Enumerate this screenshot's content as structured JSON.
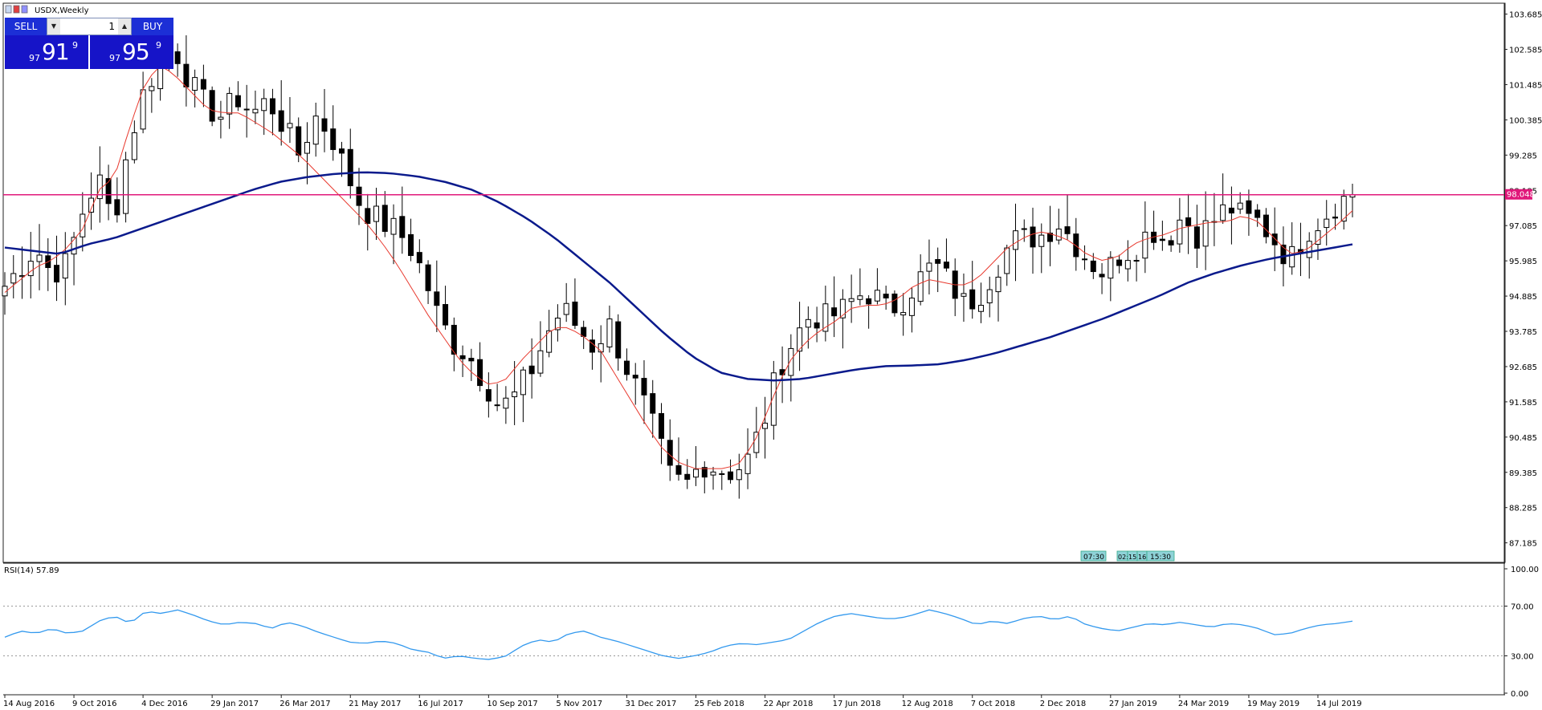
{
  "window": {
    "title": "USDX,Weekly"
  },
  "trade": {
    "sell_label": "SELL",
    "buy_label": "BUY",
    "lot_value": "1",
    "sell_price": {
      "small": "97",
      "big": "91",
      "sup": "9"
    },
    "buy_price": {
      "small": "97",
      "big": "95",
      "sup": "9"
    }
  },
  "colors": {
    "candle_bull": "#ffffff",
    "candle_bear": "#000000",
    "ma_fast": "#e8392e",
    "ma_slow": "#0a1a8c",
    "level_line": "#e0187a",
    "rsi_line": "#3399ee",
    "price_panel": "#1614c8"
  },
  "chart_data": [
    {
      "type": "candlestick",
      "symbol": "USDX",
      "timeframe": "Weekly",
      "ylim": [
        86.6,
        104.0
      ],
      "y_ticks": [
        "103.685",
        "102.585",
        "101.485",
        "100.385",
        "99.285",
        "98.185",
        "97.085",
        "95.985",
        "94.885",
        "93.785",
        "92.685",
        "91.585",
        "90.485",
        "89.385",
        "88.285",
        "87.185"
      ],
      "x_ticks": [
        "14 Aug 2016",
        "9 Oct 2016",
        "4 Dec 2016",
        "29 Jan 2017",
        "26 Mar 2017",
        "21 May 2017",
        "16 Jul 2017",
        "10 Sep 2017",
        "5 Nov 2017",
        "31 Dec 2017",
        "25 Feb 2018",
        "22 Apr 2018",
        "17 Jun 2018",
        "12 Aug 2018",
        "7 Oct 2018",
        "2 Dec 2018",
        "27 Jan 2019",
        "24 Mar 2019",
        "19 May 2019",
        "14 Jul 2019"
      ],
      "horizontal_level": 98.048,
      "current_price": "98.048",
      "close_path": [
        95.2,
        95.8,
        96.4,
        95.6,
        95.9,
        97.5,
        98.6,
        97.2,
        99.6,
        101.3,
        102.2,
        102.6,
        101.5,
        100.8,
        100.5,
        101.1,
        100.6,
        101.0,
        100.2,
        99.3,
        100.5,
        100.0,
        98.8,
        97.7,
        97.3,
        97.0,
        96.6,
        95.6,
        94.2,
        93.4,
        93.0,
        92.2,
        91.4,
        91.8,
        92.6,
        93.7,
        94.5,
        93.9,
        93.3,
        94.0,
        92.8,
        91.8,
        90.6,
        89.2,
        89.0,
        89.7,
        89.5,
        89.4,
        89.8,
        91.0,
        92.7,
        93.6,
        94.3,
        94.2,
        94.4,
        94.9,
        95.0,
        94.4,
        94.8,
        95.4,
        95.9,
        95.3,
        94.6,
        95.0,
        95.8,
        96.6,
        96.7,
        96.8,
        97.2,
        96.6,
        96.0,
        95.6,
        96.2,
        96.4,
        97.0,
        96.6,
        97.4,
        96.8,
        97.2,
        97.7,
        97.3,
        97.2,
        96.6,
        96.0,
        96.9,
        97.3,
        97.8,
        98.05
      ],
      "ma_fast_path": [
        95.0,
        95.4,
        95.8,
        96.0,
        96.4,
        97.0,
        98.2,
        98.6,
        100.2,
        101.6,
        102.1,
        101.7,
        101.2,
        100.7,
        100.6,
        100.6,
        100.3,
        100.0,
        99.6,
        99.2,
        98.7,
        98.2,
        97.7,
        97.2,
        96.6,
        95.9,
        95.1,
        94.3,
        93.6,
        92.9,
        92.4,
        92.1,
        92.3,
        92.9,
        93.4,
        93.9,
        93.9,
        93.6,
        93.2,
        92.4,
        91.6,
        90.8,
        90.1,
        89.7,
        89.5,
        89.5,
        89.5,
        89.7,
        90.5,
        91.7,
        92.8,
        93.4,
        93.8,
        94.1,
        94.5,
        94.6,
        94.6,
        94.8,
        95.2,
        95.4,
        95.3,
        95.2,
        95.4,
        95.9,
        96.4,
        96.7,
        96.9,
        96.8,
        96.6,
        96.2,
        96.0,
        96.1,
        96.5,
        96.7,
        96.8,
        97.0,
        97.1,
        97.2,
        97.2,
        97.4,
        97.2,
        96.7,
        96.2,
        96.3,
        96.7,
        97.1,
        97.55
      ],
      "ma_slow_path": [
        96.4,
        96.3,
        96.2,
        96.5,
        96.7,
        97.0,
        97.3,
        97.6,
        97.9,
        98.2,
        98.45,
        98.6,
        98.7,
        98.75,
        98.72,
        98.62,
        98.45,
        98.2,
        97.8,
        97.3,
        96.7,
        96.0,
        95.3,
        94.5,
        93.7,
        93.0,
        92.5,
        92.3,
        92.25,
        92.3,
        92.45,
        92.6,
        92.7,
        92.72,
        92.76,
        92.9,
        93.1,
        93.35,
        93.6,
        93.9,
        94.2,
        94.55,
        94.9,
        95.3,
        95.6,
        95.85,
        96.05,
        96.2,
        96.35,
        96.5
      ],
      "ma_slow_x_end_week": 156
    },
    {
      "type": "line",
      "title": "RSI(14) 57.89",
      "ylim": [
        0,
        100
      ],
      "y_ticks": [
        "100.00",
        "70.00",
        "30.00",
        "0.00"
      ],
      "levels": [
        70,
        30
      ],
      "values": [
        45,
        50,
        48,
        52,
        48,
        50,
        58,
        62,
        56,
        66,
        64,
        67,
        63,
        58,
        55,
        57,
        56,
        52,
        57,
        54,
        49,
        45,
        41,
        40,
        42,
        40,
        35,
        33,
        28,
        30,
        28,
        27,
        30,
        38,
        43,
        41,
        48,
        50,
        45,
        42,
        38,
        34,
        30,
        28,
        30,
        33,
        38,
        40,
        39,
        41,
        43,
        50,
        57,
        62,
        64,
        62,
        60,
        60,
        63,
        67,
        64,
        60,
        55,
        58,
        56,
        60,
        62,
        59,
        62,
        55,
        52,
        50,
        53,
        56,
        55,
        57,
        55,
        53,
        56,
        55,
        52,
        47,
        48,
        52,
        55,
        56,
        57.89
      ]
    }
  ],
  "session_labels": [
    "07:30",
    "02:",
    "15",
    "16",
    "15:30"
  ]
}
